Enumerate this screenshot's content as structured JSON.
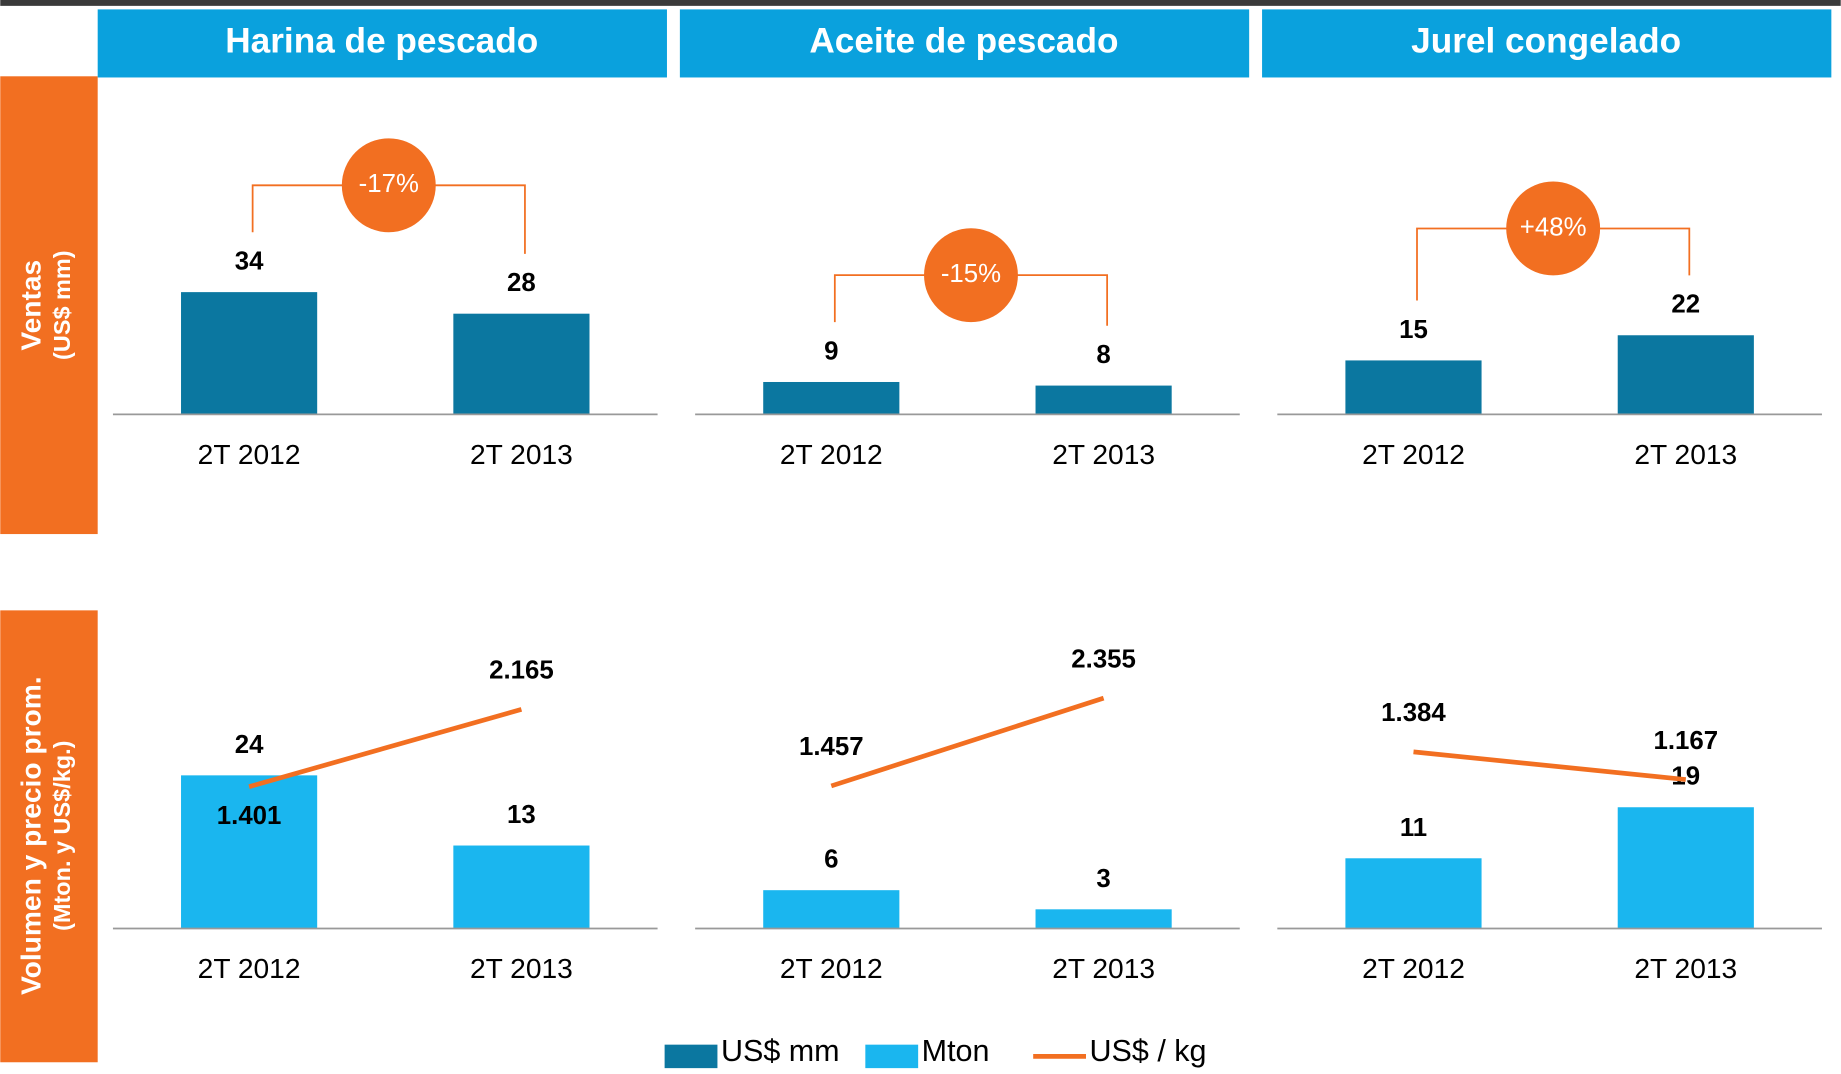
{
  "headers": [
    "Harina de pescado",
    "Aceite de pescado",
    "Jurel congelado"
  ],
  "row_labels": [
    {
      "title": "Ventas",
      "subtitle": "(US$ mm)"
    },
    {
      "title": "Volumen y precio prom.",
      "subtitle": "(Mton. y US$/kg.)"
    }
  ],
  "legend": [
    {
      "name": "US$ mm",
      "color": "#0b77a0",
      "kind": "bar"
    },
    {
      "name": "Mton",
      "color": "#1ab6ef",
      "kind": "bar"
    },
    {
      "name": "US$ / kg",
      "color": "#f26f21",
      "kind": "line"
    }
  ],
  "chart_data": [
    {
      "type": "bar",
      "categories": [
        "2T 2012",
        "2T 2013"
      ],
      "series": [
        {
          "color": "#0b77a0",
          "values": [
            34,
            28
          ]
        }
      ],
      "ylim": [
        0,
        80
      ],
      "change": "-17%",
      "change_color": "#f26f21"
    },
    {
      "type": "bar",
      "categories": [
        "2T 2012",
        "2T 2013"
      ],
      "series": [
        {
          "color": "#0b77a0",
          "values": [
            9,
            8
          ]
        }
      ],
      "ylim": [
        0,
        80
      ],
      "change": "-15%",
      "change_color": "#f26f21"
    },
    {
      "type": "bar",
      "categories": [
        "2T 2012",
        "2T 2013"
      ],
      "series": [
        {
          "color": "#0b77a0",
          "values": [
            15,
            22
          ]
        }
      ],
      "ylim": [
        0,
        80
      ],
      "change": "+48%",
      "change_color": "#f26f21"
    },
    {
      "type": "combo",
      "categories": [
        "2T 2012",
        "2T 2013"
      ],
      "series": [
        {
          "color": "#1ab6ef",
          "values": [
            24,
            13
          ]
        },
        {
          "color": "#f26f21",
          "values": [
            1.401,
            2.165
          ],
          "axis": "y2"
        }
      ],
      "ylim": [
        0,
        46
      ],
      "y2lim": [
        0,
        2.9
      ]
    },
    {
      "type": "combo",
      "categories": [
        "2T 2012",
        "2T 2013"
      ],
      "series": [
        {
          "color": "#1ab6ef",
          "values": [
            6,
            3
          ]
        },
        {
          "color": "#f26f21",
          "values": [
            1.457,
            2.355
          ],
          "axis": "y2"
        }
      ],
      "ylim": [
        0,
        46
      ],
      "y2lim": [
        0,
        3
      ]
    },
    {
      "type": "combo",
      "categories": [
        "2T 2012",
        "2T 2013"
      ],
      "series": [
        {
          "color": "#1ab6ef",
          "values": [
            11,
            19
          ]
        },
        {
          "color": "#f26f21",
          "values": [
            1.384,
            1.167
          ],
          "axis": "y2"
        }
      ],
      "ylim": [
        0,
        46
      ],
      "y2lim": [
        0,
        2.3
      ]
    }
  ]
}
